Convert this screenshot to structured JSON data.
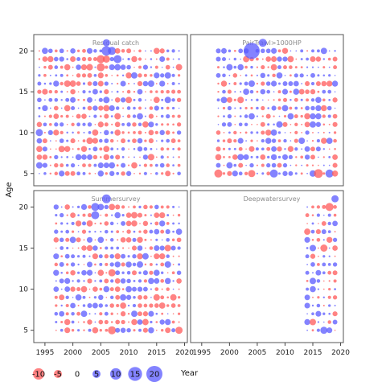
{
  "chart_data": {
    "type": "scatter",
    "subtype": "bubble-residuals",
    "xlabel": "Year",
    "ylabel": "Age",
    "xlim": [
      1993,
      2020.5
    ],
    "ylim": [
      3.5,
      22
    ],
    "xticks": [
      1995,
      2000,
      2005,
      2010,
      2015,
      2020
    ],
    "yticks": [
      5,
      10,
      15,
      20
    ],
    "colors": {
      "positive": "#5a5aff",
      "negative": "#ff5a5a"
    },
    "legend": {
      "labels": [
        "-10",
        "-5",
        "0",
        "5",
        "10",
        "15",
        "20"
      ],
      "values": [
        -10,
        -5,
        0,
        5,
        10,
        15,
        20
      ],
      "placement": "bottom-left"
    },
    "ages": [
      5,
      20
    ],
    "max_abs_value": 20,
    "panels": [
      {
        "title": "Residual catch",
        "years": [
          1994,
          2019
        ],
        "highlights": [
          {
            "year": 2006,
            "age": 20,
            "value": 7
          },
          {
            "year": 2005,
            "age": 19,
            "value": -5
          },
          {
            "year": 2006,
            "age": 19,
            "value": -4
          },
          {
            "year": 2005,
            "age": 18,
            "value": -5
          },
          {
            "year": 2007,
            "age": 20,
            "value": 5
          },
          {
            "year": 2008,
            "age": 19,
            "value": 5
          },
          {
            "year": 1994,
            "age": 10,
            "value": 4
          },
          {
            "year": 2006,
            "age": 21,
            "value": 4
          }
        ]
      },
      {
        "title": "PairTrawl>1000HP",
        "years": [
          1998,
          2019
        ],
        "highlights": [
          {
            "year": 2004,
            "age": 20,
            "value": 20
          },
          {
            "year": 2006,
            "age": 21,
            "value": 5
          },
          {
            "year": 1998,
            "age": 5,
            "value": -5
          },
          {
            "year": 2004,
            "age": 5,
            "value": -4
          },
          {
            "year": 2008,
            "age": 5,
            "value": 5
          },
          {
            "year": 2016,
            "age": 5,
            "value": -6
          },
          {
            "year": 2018,
            "age": 5,
            "value": 5
          }
        ]
      },
      {
        "title": "Summersurvey",
        "years": [
          1997,
          2019
        ],
        "highlights": [
          {
            "year": 2006,
            "age": 21,
            "value": 6
          },
          {
            "year": 2004,
            "age": 19,
            "value": 5
          },
          {
            "year": 2004,
            "age": 20,
            "value": 5
          },
          {
            "year": 2007,
            "age": 5,
            "value": -5
          },
          {
            "year": 2019,
            "age": 5,
            "value": -4
          },
          {
            "year": 2007,
            "age": 12,
            "value": -4
          }
        ]
      },
      {
        "title": "Deepwatersurvey",
        "years": [
          2014,
          2019
        ],
        "highlights": [
          {
            "year": 2018,
            "age": 20,
            "value": -5
          },
          {
            "year": 2019,
            "age": 21,
            "value": 4
          },
          {
            "year": 2017,
            "age": 5,
            "value": 4
          },
          {
            "year": 2017,
            "age": 15,
            "value": -4
          }
        ]
      }
    ]
  }
}
